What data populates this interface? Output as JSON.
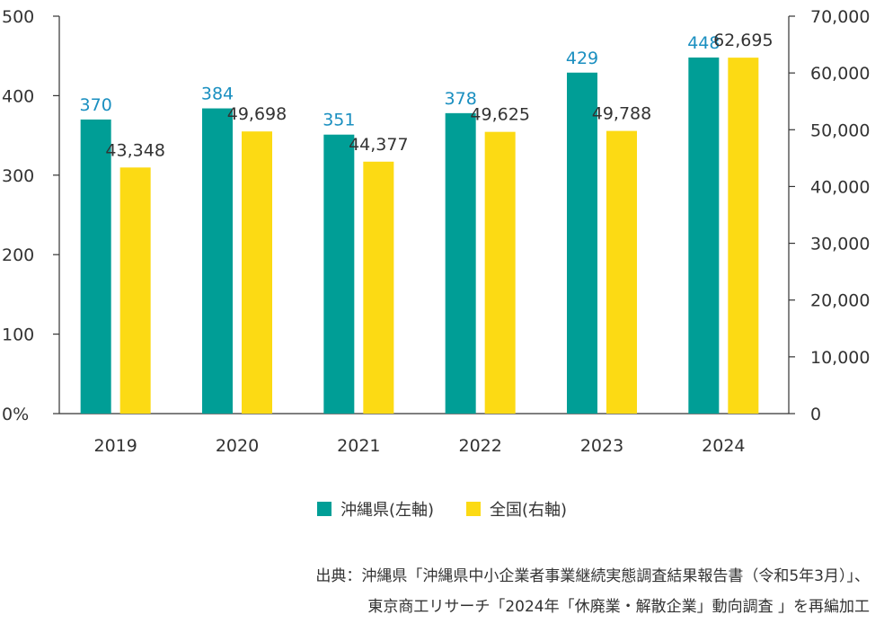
{
  "chart_data": {
    "type": "bar",
    "categories": [
      "2019",
      "2020",
      "2021",
      "2022",
      "2023",
      "2024"
    ],
    "series": [
      {
        "name": "沖縄県(左軸)",
        "axis": "left",
        "color": "#009E96",
        "values": [
          370,
          384,
          351,
          378,
          429,
          448
        ],
        "labels": [
          "370",
          "384",
          "351",
          "378",
          "429",
          "448"
        ]
      },
      {
        "name": "全国(右軸)",
        "axis": "right",
        "color": "#FCDA14",
        "values": [
          43348,
          49698,
          44377,
          49625,
          49788,
          62695
        ],
        "labels": [
          "43,348",
          "49,698",
          "44,377",
          "49,625",
          "49,788",
          "62,695"
        ]
      }
    ],
    "left_axis": {
      "ylim": [
        0,
        500
      ],
      "ticks": [
        "0%",
        "100",
        "200",
        "300",
        "400",
        "500"
      ]
    },
    "right_axis": {
      "ylim": [
        0,
        70000
      ],
      "ticks": [
        "0",
        "10,000",
        "20,000",
        "30,000",
        "40,000",
        "50,000",
        "60,000",
        "70,000"
      ]
    },
    "label_color_left": "#1A8FC0",
    "text_color": "#333333",
    "legend_position": "bottom"
  },
  "legend": {
    "okinawa_label": "沖縄県(左軸)",
    "national_label": "全国(右軸)",
    "okinawa_color": "#009E96",
    "national_color": "#FCDA14"
  },
  "source": {
    "line1": "出典：沖縄県「沖縄県中小企業者事業継続実態調査結果報告書（令和5年3月）」、",
    "line2": "東京商工リサーチ「2024年「休廃業・解散企業」動向調査 」を再編加工"
  }
}
